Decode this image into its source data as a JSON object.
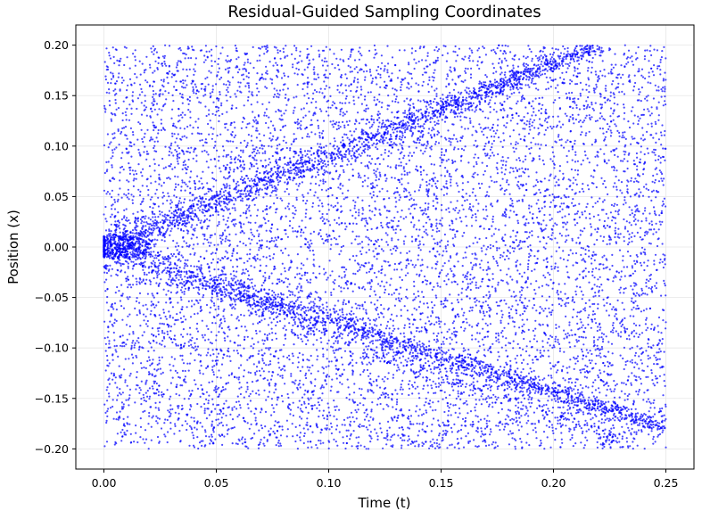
{
  "chart_data": {
    "type": "scatter",
    "title": "Residual-Guided Sampling Coordinates",
    "xlabel": "Time (t)",
    "ylabel": "Position (x)",
    "xlim": [
      -0.0125,
      0.2625
    ],
    "ylim": [
      -0.22,
      0.22
    ],
    "xticks": [
      0.0,
      0.05,
      0.1,
      0.15,
      0.2,
      0.25
    ],
    "xtick_labels": [
      "0.00",
      "0.05",
      "0.10",
      "0.15",
      "0.20",
      "0.25"
    ],
    "yticks": [
      -0.2,
      -0.15,
      -0.1,
      -0.05,
      0.0,
      0.05,
      0.1,
      0.15,
      0.2
    ],
    "ytick_labels": [
      "−0.20",
      "−0.15",
      "−0.10",
      "−0.05",
      "0.00",
      "0.05",
      "0.10",
      "0.15",
      "0.20"
    ],
    "grid": true,
    "marker_color": "#0000ff",
    "points": {
      "uniform": {
        "count": 9000,
        "x_range": [
          0.0,
          0.25
        ],
        "y_range": [
          -0.2,
          0.2
        ]
      },
      "clusters": [
        {
          "from": [
            0.0,
            0.0
          ],
          "to": [
            0.22,
            0.2
          ],
          "count": 1600
        },
        {
          "from": [
            0.0,
            0.0
          ],
          "to": [
            0.25,
            -0.18
          ],
          "count": 1500
        },
        {
          "from": [
            0.02,
            -0.02
          ],
          "to": [
            0.24,
            -0.2
          ],
          "count": 400
        },
        {
          "center": [
            0.005,
            0.0
          ],
          "radius": 0.02,
          "count": 400
        }
      ]
    }
  }
}
